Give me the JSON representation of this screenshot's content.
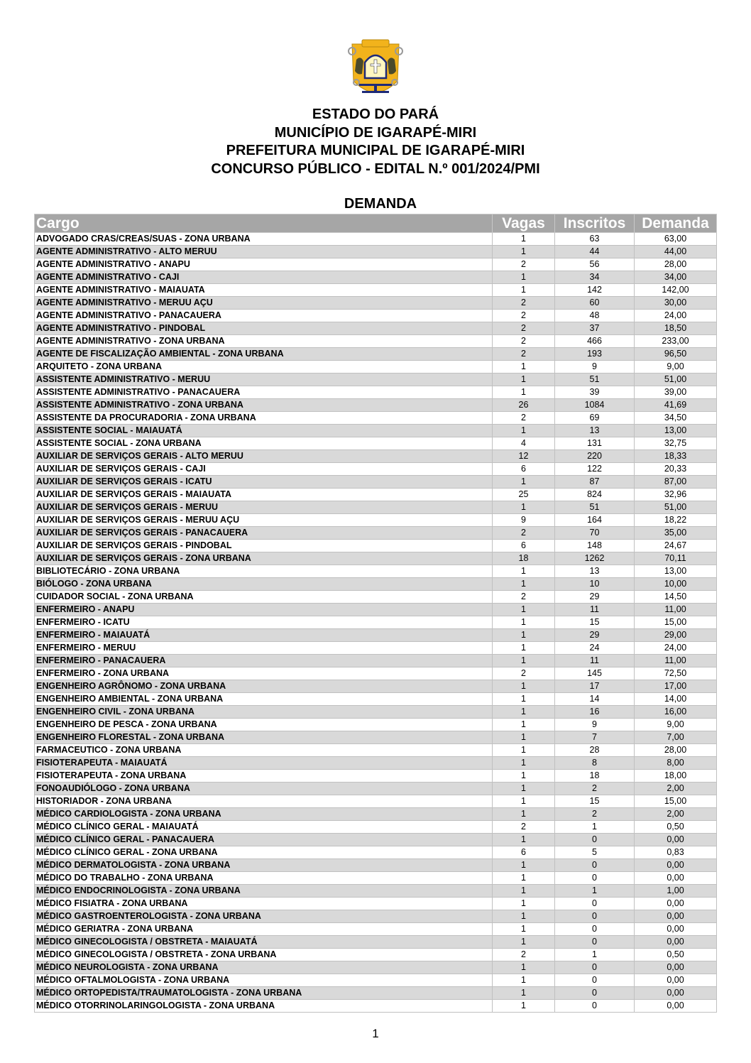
{
  "header": {
    "lines": [
      "ESTADO DO PARÁ",
      "MUNICÍPIO DE IGARAPÉ-MIRI",
      "PREFEITURA MUNICIPAL DE IGARAPÉ-MIRI",
      "CONCURSO PÚBLICO - EDITAL N.º 001/2024/PMI"
    ],
    "logo": "municipal-coat-of-arms",
    "section_title": "DEMANDA"
  },
  "colors": {
    "header_bg": "#a6a6a6",
    "alt_row": "#d9d9d9",
    "logo_gold": "#f2b31c",
    "logo_navy": "#1e2a78"
  },
  "table": {
    "columns": [
      "Cargo",
      "Vagas",
      "Inscritos",
      "Demanda"
    ],
    "rows": [
      [
        "ADVOGADO CRAS/CREAS/SUAS - ZONA URBANA",
        "1",
        "63",
        "63,00"
      ],
      [
        "AGENTE ADMINISTRATIVO - ALTO MERUU",
        "1",
        "44",
        "44,00"
      ],
      [
        "AGENTE ADMINISTRATIVO - ANAPU",
        "2",
        "56",
        "28,00"
      ],
      [
        "AGENTE ADMINISTRATIVO - CAJI",
        "1",
        "34",
        "34,00"
      ],
      [
        "AGENTE ADMINISTRATIVO - MAIAUATA",
        "1",
        "142",
        "142,00"
      ],
      [
        "AGENTE ADMINISTRATIVO - MERUU AÇU",
        "2",
        "60",
        "30,00"
      ],
      [
        "AGENTE ADMINISTRATIVO - PANACAUERA",
        "2",
        "48",
        "24,00"
      ],
      [
        "AGENTE ADMINISTRATIVO - PINDOBAL",
        "2",
        "37",
        "18,50"
      ],
      [
        "AGENTE ADMINISTRATIVO - ZONA URBANA",
        "2",
        "466",
        "233,00"
      ],
      [
        "AGENTE DE FISCALIZAÇÃO AMBIENTAL - ZONA URBANA",
        "2",
        "193",
        "96,50"
      ],
      [
        "ARQUITETO - ZONA URBANA",
        "1",
        "9",
        "9,00"
      ],
      [
        "ASSISTENTE ADMINISTRATIVO - MERUU",
        "1",
        "51",
        "51,00"
      ],
      [
        "ASSISTENTE ADMINISTRATIVO - PANACAUERA",
        "1",
        "39",
        "39,00"
      ],
      [
        "ASSISTENTE ADMINISTRATIVO - ZONA URBANA",
        "26",
        "1084",
        "41,69"
      ],
      [
        "ASSISTENTE DA PROCURADORIA - ZONA URBANA",
        "2",
        "69",
        "34,50"
      ],
      [
        "ASSISTENTE SOCIAL - MAIAUATÁ",
        "1",
        "13",
        "13,00"
      ],
      [
        "ASSISTENTE SOCIAL - ZONA URBANA",
        "4",
        "131",
        "32,75"
      ],
      [
        "AUXILIAR DE SERVIÇOS GERAIS - ALTO MERUU",
        "12",
        "220",
        "18,33"
      ],
      [
        "AUXILIAR DE SERVIÇOS GERAIS - CAJI",
        "6",
        "122",
        "20,33"
      ],
      [
        "AUXILIAR DE SERVIÇOS GERAIS - ICATU",
        "1",
        "87",
        "87,00"
      ],
      [
        "AUXILIAR DE SERVIÇOS GERAIS - MAIAUATA",
        "25",
        "824",
        "32,96"
      ],
      [
        "AUXILIAR DE SERVIÇOS GERAIS - MERUU",
        "1",
        "51",
        "51,00"
      ],
      [
        "AUXILIAR DE SERVIÇOS GERAIS - MERUU AÇU",
        "9",
        "164",
        "18,22"
      ],
      [
        "AUXILIAR DE SERVIÇOS GERAIS - PANACAUERA",
        "2",
        "70",
        "35,00"
      ],
      [
        "AUXILIAR DE SERVIÇOS GERAIS - PINDOBAL",
        "6",
        "148",
        "24,67"
      ],
      [
        "AUXILIAR DE SERVIÇOS GERAIS - ZONA URBANA",
        "18",
        "1262",
        "70,11"
      ],
      [
        "BIBLIOTECÁRIO - ZONA URBANA",
        "1",
        "13",
        "13,00"
      ],
      [
        "BIÓLOGO - ZONA URBANA",
        "1",
        "10",
        "10,00"
      ],
      [
        "CUIDADOR SOCIAL - ZONA URBANA",
        "2",
        "29",
        "14,50"
      ],
      [
        "ENFERMEIRO - ANAPU",
        "1",
        "11",
        "11,00"
      ],
      [
        "ENFERMEIRO - ICATU",
        "1",
        "15",
        "15,00"
      ],
      [
        "ENFERMEIRO - MAIAUATÁ",
        "1",
        "29",
        "29,00"
      ],
      [
        "ENFERMEIRO - MERUU",
        "1",
        "24",
        "24,00"
      ],
      [
        "ENFERMEIRO - PANACAUERA",
        "1",
        "11",
        "11,00"
      ],
      [
        "ENFERMEIRO - ZONA URBANA",
        "2",
        "145",
        "72,50"
      ],
      [
        "ENGENHEIRO AGRÔNOMO - ZONA URBANA",
        "1",
        "17",
        "17,00"
      ],
      [
        "ENGENHEIRO AMBIENTAL - ZONA URBANA",
        "1",
        "14",
        "14,00"
      ],
      [
        "ENGENHEIRO CIVIL - ZONA URBANA",
        "1",
        "16",
        "16,00"
      ],
      [
        "ENGENHEIRO DE PESCA - ZONA URBANA",
        "1",
        "9",
        "9,00"
      ],
      [
        "ENGENHEIRO FLORESTAL - ZONA URBANA",
        "1",
        "7",
        "7,00"
      ],
      [
        "FARMACEUTICO - ZONA URBANA",
        "1",
        "28",
        "28,00"
      ],
      [
        "FISIOTERAPEUTA - MAIAUATÁ",
        "1",
        "8",
        "8,00"
      ],
      [
        "FISIOTERAPEUTA - ZONA URBANA",
        "1",
        "18",
        "18,00"
      ],
      [
        "FONOAUDIÓLOGO - ZONA URBANA",
        "1",
        "2",
        "2,00"
      ],
      [
        "HISTORIADOR - ZONA URBANA",
        "1",
        "15",
        "15,00"
      ],
      [
        "MÉDICO CARDIOLOGISTA - ZONA URBANA",
        "1",
        "2",
        "2,00"
      ],
      [
        "MÉDICO CLÍNICO GERAL - MAIAUATÁ",
        "2",
        "1",
        "0,50"
      ],
      [
        "MÉDICO CLÍNICO GERAL - PANACAUERA",
        "1",
        "0",
        "0,00"
      ],
      [
        "MÉDICO CLÍNICO GERAL - ZONA URBANA",
        "6",
        "5",
        "0,83"
      ],
      [
        "MÉDICO DERMATOLOGISTA - ZONA URBANA",
        "1",
        "0",
        "0,00"
      ],
      [
        "MÉDICO DO TRABALHO - ZONA URBANA",
        "1",
        "0",
        "0,00"
      ],
      [
        "MÉDICO ENDOCRINOLOGISTA - ZONA URBANA",
        "1",
        "1",
        "1,00"
      ],
      [
        "MÉDICO FISIATRA - ZONA URBANA",
        "1",
        "0",
        "0,00"
      ],
      [
        "MÉDICO GASTROENTEROLOGISTA - ZONA URBANA",
        "1",
        "0",
        "0,00"
      ],
      [
        "MÉDICO GERIATRA - ZONA URBANA",
        "1",
        "0",
        "0,00"
      ],
      [
        "MÉDICO GINECOLOGISTA / OBSTRETA - MAIAUATÁ",
        "1",
        "0",
        "0,00"
      ],
      [
        "MÉDICO GINECOLOGISTA / OBSTRETA - ZONA URBANA",
        "2",
        "1",
        "0,50"
      ],
      [
        "MÉDICO NEUROLOGISTA - ZONA URBANA",
        "1",
        "0",
        "0,00"
      ],
      [
        "MÉDICO OFTALMOLOGISTA - ZONA URBANA",
        "1",
        "0",
        "0,00"
      ],
      [
        "MÉDICO ORTOPEDISTA/TRAUMATOLOGISTA - ZONA URBANA",
        "1",
        "0",
        "0,00"
      ],
      [
        "MÉDICO OTORRINOLARINGOLOGISTA - ZONA URBANA",
        "1",
        "0",
        "0,00"
      ]
    ]
  },
  "footer": {
    "page_number": "1"
  }
}
